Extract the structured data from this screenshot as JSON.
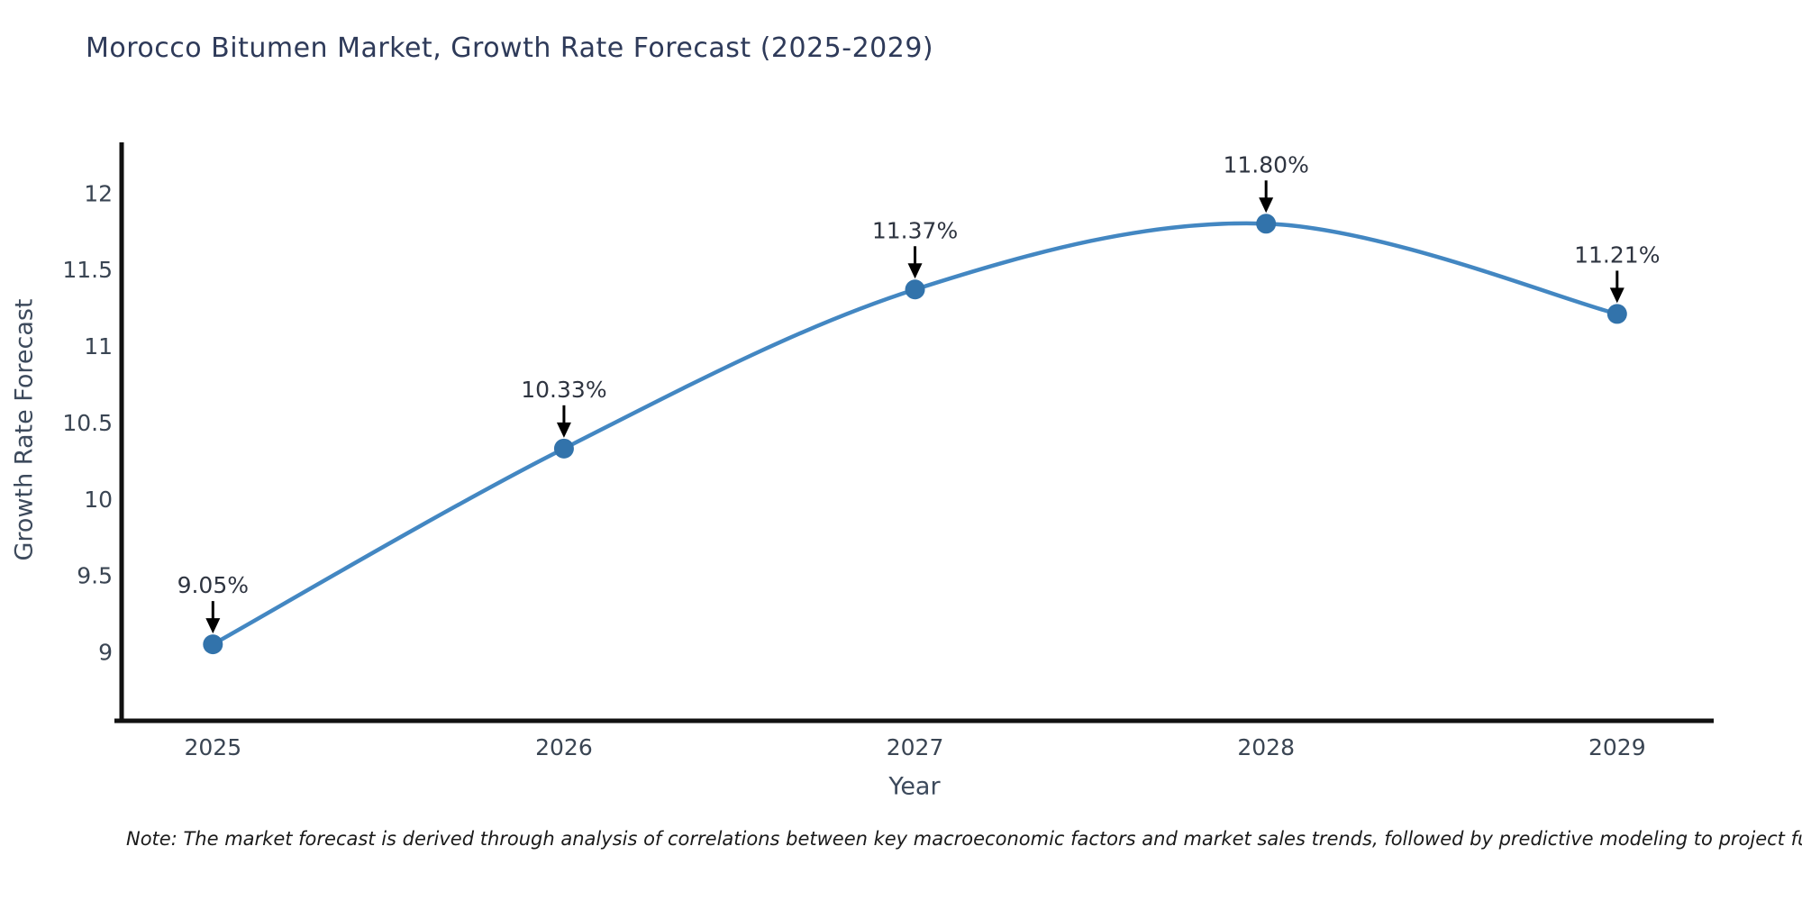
{
  "page": {
    "note": "Note: The market forecast is derived through analysis of correlations between key macroeconomic factors and market sales trends, followed by predictive modeling to project future sal"
  },
  "chart_data": {
    "type": "line",
    "title": "Morocco Bitumen Market, Growth Rate Forecast (2025-2029)",
    "xlabel": "Year",
    "ylabel": "Growth Rate Forecast",
    "x": [
      2025,
      2026,
      2027,
      2028,
      2029
    ],
    "x_tick_labels": [
      "2025",
      "2026",
      "2027",
      "2028",
      "2029"
    ],
    "values": [
      9.05,
      10.33,
      11.37,
      11.8,
      11.21
    ],
    "point_labels": [
      "9.05%",
      "10.33%",
      "11.37%",
      "11.80%",
      "11.21%"
    ],
    "y_ticks": [
      9,
      9.5,
      10,
      10.5,
      11,
      11.5,
      12
    ],
    "y_tick_labels": [
      "9",
      "9.5",
      "10",
      "10.5",
      "11",
      "11.5",
      "12"
    ],
    "ylim": [
      8.55,
      12.32
    ],
    "xlim": [
      2024.74,
      2029.27
    ],
    "grid": false,
    "legend": "none",
    "line_shape": "spline",
    "colors": {
      "line": "#4387c2",
      "marker": "#3273ab",
      "annotation_arrow": "#000000",
      "annotation_text": "#2e3440",
      "axis": "#111111",
      "tick_label": "#3a4553",
      "title": "#2e3a59",
      "axis_label": "#3d4a5c"
    }
  }
}
